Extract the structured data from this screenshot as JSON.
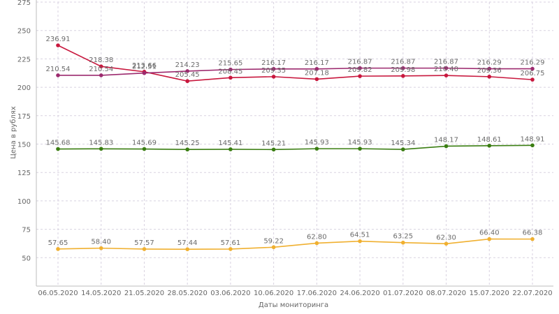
{
  "chart_data": {
    "type": "line",
    "xlabel": "Даты мониторинга",
    "ylabel": "Цена в рублях",
    "ylim": [
      25,
      275
    ],
    "yticks": [
      50,
      75,
      100,
      125,
      150,
      175,
      200,
      225,
      250,
      275
    ],
    "grid": true,
    "categories": [
      "06.05.2020",
      "14.05.2020",
      "21.05.2020",
      "28.05.2020",
      "03.06.2020",
      "10.06.2020",
      "17.06.2020",
      "24.06.2020",
      "01.07.2020",
      "08.07.2020",
      "15.07.2020",
      "22.07.2020"
    ],
    "series": [
      {
        "color": "#c8173d",
        "values": [
          236.91,
          218.38,
          213.66,
          205.45,
          208.45,
          209.35,
          207.18,
          209.82,
          209.98,
          210.4,
          209.36,
          206.75
        ]
      },
      {
        "color": "#9c2a6e",
        "values": [
          210.54,
          210.54,
          212.51,
          214.23,
          215.65,
          216.17,
          216.17,
          216.87,
          216.87,
          216.87,
          216.29,
          216.29
        ]
      },
      {
        "color": "#3a7d12",
        "values": [
          145.68,
          145.83,
          145.69,
          145.25,
          145.41,
          145.21,
          145.93,
          145.93,
          145.34,
          148.17,
          148.61,
          148.91
        ]
      },
      {
        "color": "#f0b030",
        "values": [
          57.65,
          58.4,
          57.57,
          57.44,
          57.61,
          59.22,
          62.8,
          64.51,
          63.25,
          62.3,
          66.4,
          66.38
        ]
      }
    ]
  }
}
